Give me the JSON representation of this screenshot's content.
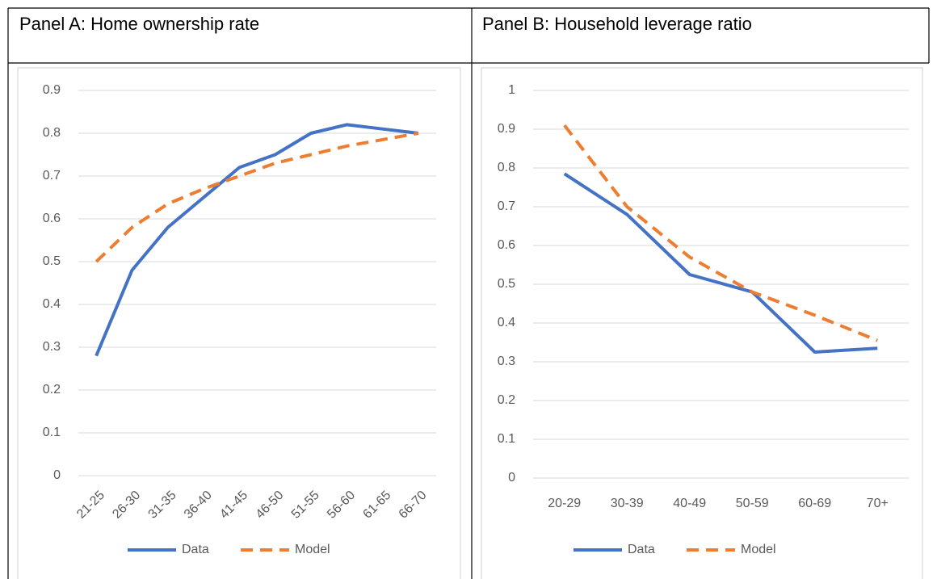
{
  "chart_data": [
    {
      "type": "line",
      "title": "Panel A: Home ownership rate",
      "categories": [
        "21-25",
        "26-30",
        "31-35",
        "36-40",
        "41-45",
        "46-50",
        "51-55",
        "56-60",
        "61-65",
        "66-70"
      ],
      "series": [
        {
          "name": "Data",
          "color": "#4472C4",
          "line_style": "solid",
          "values": [
            0.28,
            0.48,
            0.58,
            0.65,
            0.72,
            0.75,
            0.8,
            0.82,
            0.81,
            0.8
          ]
        },
        {
          "name": "Model",
          "color": "#ED7D31",
          "line_style": "dashed",
          "values": [
            0.5,
            0.58,
            0.635,
            0.67,
            0.7,
            0.73,
            0.75,
            0.77,
            0.785,
            0.8
          ]
        }
      ],
      "ylim": [
        0,
        0.9
      ],
      "yticks": [
        0,
        0.1,
        0.2,
        0.3,
        0.4,
        0.5,
        0.6,
        0.7,
        0.8,
        0.9
      ],
      "grid": true,
      "legend": "bottom"
    },
    {
      "type": "line",
      "title": "Panel B: Household leverage ratio",
      "categories": [
        "20-29",
        "30-39",
        "40-49",
        "50-59",
        "60-69",
        "70+"
      ],
      "series": [
        {
          "name": "Data",
          "color": "#4472C4",
          "line_style": "solid",
          "values": [
            0.785,
            0.68,
            0.525,
            0.48,
            0.325,
            0.335
          ]
        },
        {
          "name": "Model",
          "color": "#ED7D31",
          "line_style": "dashed",
          "values": [
            0.91,
            0.7,
            0.57,
            0.48,
            0.42,
            0.355
          ]
        }
      ],
      "ylim": [
        0,
        1
      ],
      "yticks": [
        0,
        0.1,
        0.2,
        0.3,
        0.4,
        0.5,
        0.6,
        0.7,
        0.8,
        0.9,
        1
      ],
      "grid": true,
      "legend": "bottom"
    }
  ]
}
